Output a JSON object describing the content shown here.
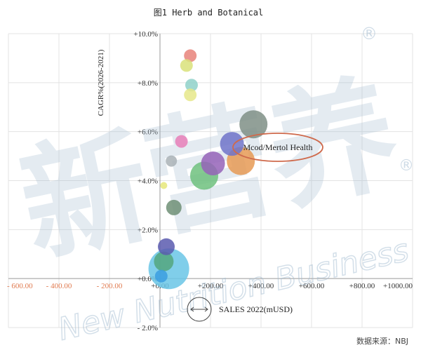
{
  "chart_data": {
    "type": "scatter",
    "title": "图1 Herb and Botanical",
    "xlabel": "SALES 2022(mUSD)",
    "ylabel": "CAGR%(2026-2021)",
    "xlim": [
      -600,
      1000
    ],
    "ylim": [
      -2,
      10
    ],
    "x_ticks": [
      "- 600.00",
      "- 400.00",
      "- 200.00",
      "+0.00",
      "+200.00",
      "+400.00",
      "+600.00",
      "+800.00",
      "+1000.00"
    ],
    "x_tick_values": [
      -600,
      -400,
      -200,
      0,
      200,
      400,
      600,
      800,
      1000
    ],
    "y_ticks": [
      "- 2.0%",
      "+0.0%",
      "+2.0%",
      "+4.0%",
      "+6.0%",
      "+8.0%",
      "+10.0%"
    ],
    "y_tick_values": [
      -2,
      0,
      2,
      4,
      6,
      8,
      10
    ],
    "grid": true,
    "bubble_size_note": "bubble size proportional to sales",
    "points": [
      {
        "x": 120,
        "y": 9.1,
        "size": 9,
        "color": "#e8827a"
      },
      {
        "x": 105,
        "y": 8.7,
        "size": 9,
        "color": "#d9e27a"
      },
      {
        "x": 125,
        "y": 7.9,
        "size": 9,
        "color": "#8fd1c9"
      },
      {
        "x": 120,
        "y": 7.5,
        "size": 9,
        "color": "#e6e88a"
      },
      {
        "x": 370,
        "y": 6.3,
        "size": 20,
        "color": "#7f8f86"
      },
      {
        "x": 285,
        "y": 5.5,
        "size": 17,
        "color": "#6f73c9"
      },
      {
        "x": 85,
        "y": 5.6,
        "size": 9,
        "color": "#e77fb8"
      },
      {
        "x": 45,
        "y": 4.8,
        "size": 8,
        "color": "#a9b2b6"
      },
      {
        "x": 320,
        "y": 4.8,
        "size": 20,
        "color": "#e69a55"
      },
      {
        "x": 210,
        "y": 4.7,
        "size": 17,
        "color": "#9563b8"
      },
      {
        "x": 175,
        "y": 4.2,
        "size": 20,
        "color": "#6fc17e"
      },
      {
        "x": 15,
        "y": 3.8,
        "size": 5,
        "color": "#e6e87a"
      },
      {
        "x": 55,
        "y": 2.9,
        "size": 11,
        "color": "#6f8f76"
      },
      {
        "x": 25,
        "y": 1.3,
        "size": 12,
        "color": "#5a5aaf"
      },
      {
        "x": 15,
        "y": 0.7,
        "size": 14,
        "color": "#54a67e"
      },
      {
        "x": 35,
        "y": 0.4,
        "size": 29,
        "color": "#6ac6e6"
      },
      {
        "x": 5,
        "y": 0.1,
        "size": 9,
        "color": "#3b9ee0"
      }
    ],
    "annotation": "Mcod/Mertol Health",
    "source": "数据来源：NBJ",
    "watermark": {
      "cn": "新营养",
      "en": "New Nutrition Business",
      "mark": "®"
    }
  }
}
